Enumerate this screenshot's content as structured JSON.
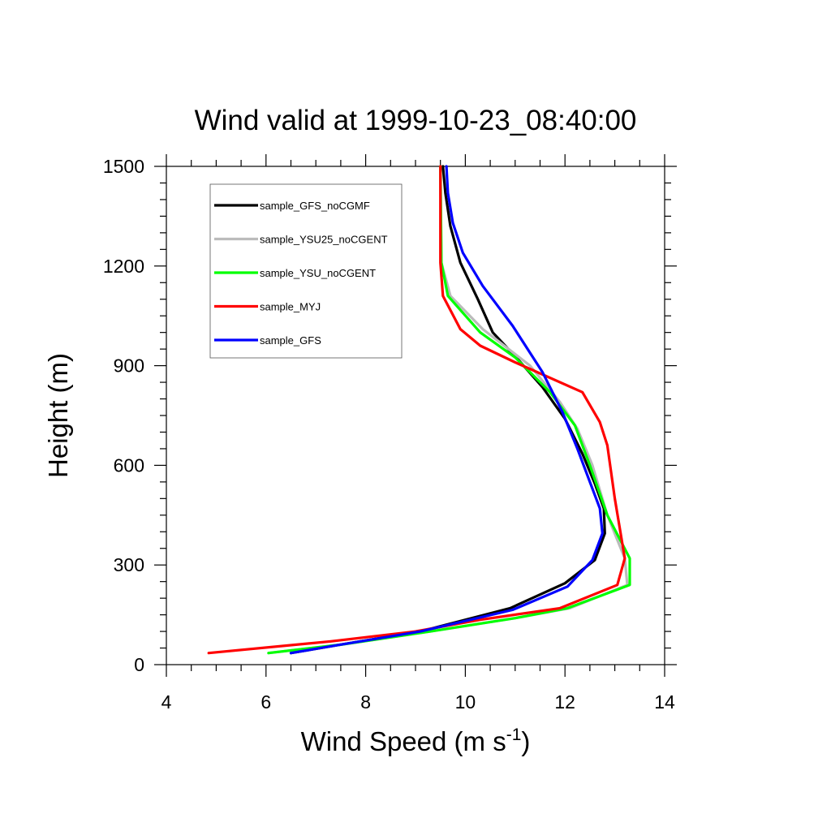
{
  "chart_data": {
    "type": "line",
    "title": "Wind valid at 1999-10-23_08:40:00",
    "xlabel": "Wind Speed (m s",
    "xlabel_sup": "-1",
    "xlabel_close": ")",
    "ylabel": "Height (m)",
    "xlim": [
      4,
      14
    ],
    "ylim": [
      0,
      1500
    ],
    "x_ticks": [
      4,
      6,
      8,
      10,
      12,
      14
    ],
    "y_ticks": [
      0,
      300,
      600,
      900,
      1200,
      1500
    ],
    "grid": false,
    "legend_position": "top-left",
    "series": [
      {
        "name": "sample_GFS_noCGMF",
        "color": "#000000",
        "points": [
          [
            6.5,
            35
          ],
          [
            7.4,
            58
          ],
          [
            9.1,
            100
          ],
          [
            10.9,
            170
          ],
          [
            12.0,
            245
          ],
          [
            12.6,
            315
          ],
          [
            12.8,
            395
          ],
          [
            12.78,
            470
          ],
          [
            12.6,
            545
          ],
          [
            12.35,
            635
          ],
          [
            12.0,
            740
          ],
          [
            11.55,
            835
          ],
          [
            11.05,
            920
          ],
          [
            10.55,
            1000
          ],
          [
            10.25,
            1100
          ],
          [
            9.9,
            1210
          ],
          [
            9.7,
            1320
          ],
          [
            9.6,
            1420
          ],
          [
            9.55,
            1500
          ]
        ]
      },
      {
        "name": "sample_YSU25_noCGENT",
        "color": "#bbbbbb",
        "points": [
          [
            6.05,
            35
          ],
          [
            7.5,
            60
          ],
          [
            9.3,
            100
          ],
          [
            11.0,
            140
          ],
          [
            12.1,
            170
          ],
          [
            13.25,
            240
          ],
          [
            13.2,
            320
          ],
          [
            12.85,
            450
          ],
          [
            12.55,
            600
          ],
          [
            12.25,
            710
          ],
          [
            11.9,
            790
          ],
          [
            11.3,
            900
          ],
          [
            10.35,
            1010
          ],
          [
            9.7,
            1110
          ],
          [
            9.52,
            1210
          ],
          [
            9.5,
            1500
          ]
        ]
      },
      {
        "name": "sample_YSU_noCGENT",
        "color": "#00ff00",
        "points": [
          [
            6.05,
            35
          ],
          [
            7.5,
            60
          ],
          [
            9.3,
            100
          ],
          [
            11.0,
            140
          ],
          [
            12.05,
            170
          ],
          [
            13.3,
            240
          ],
          [
            13.3,
            320
          ],
          [
            12.85,
            450
          ],
          [
            12.5,
            600
          ],
          [
            12.2,
            720
          ],
          [
            11.7,
            820
          ],
          [
            11.0,
            925
          ],
          [
            10.3,
            1000
          ],
          [
            9.65,
            1110
          ],
          [
            9.52,
            1210
          ],
          [
            9.5,
            1500
          ]
        ]
      },
      {
        "name": "sample_MYJ",
        "color": "#ff0000",
        "points": [
          [
            4.85,
            35
          ],
          [
            7.3,
            70
          ],
          [
            9.0,
            100
          ],
          [
            10.3,
            135
          ],
          [
            11.9,
            170
          ],
          [
            13.05,
            240
          ],
          [
            13.2,
            320
          ],
          [
            13.0,
            500
          ],
          [
            12.85,
            660
          ],
          [
            12.7,
            730
          ],
          [
            12.35,
            820
          ],
          [
            11.0,
            910
          ],
          [
            10.3,
            960
          ],
          [
            9.9,
            1010
          ],
          [
            9.55,
            1110
          ],
          [
            9.5,
            1210
          ],
          [
            9.5,
            1500
          ]
        ]
      },
      {
        "name": "sample_GFS",
        "color": "#0000ff",
        "points": [
          [
            6.5,
            35
          ],
          [
            7.4,
            58
          ],
          [
            9.1,
            100
          ],
          [
            10.95,
            165
          ],
          [
            12.05,
            235
          ],
          [
            12.55,
            315
          ],
          [
            12.75,
            395
          ],
          [
            12.7,
            470
          ],
          [
            12.5,
            550
          ],
          [
            12.25,
            650
          ],
          [
            11.95,
            760
          ],
          [
            11.55,
            880
          ],
          [
            10.95,
            1020
          ],
          [
            10.35,
            1140
          ],
          [
            9.95,
            1240
          ],
          [
            9.75,
            1330
          ],
          [
            9.65,
            1420
          ],
          [
            9.62,
            1500
          ]
        ]
      }
    ]
  }
}
